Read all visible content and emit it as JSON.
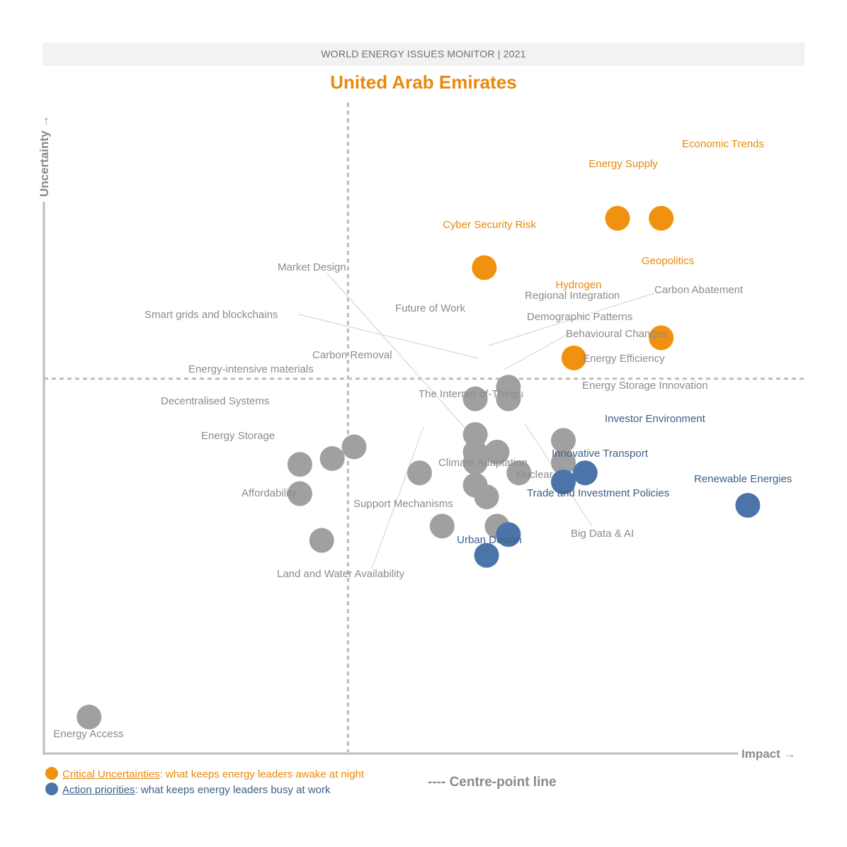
{
  "header": {
    "title": "WORLD ENERGY ISSUES MONITOR | 2021"
  },
  "country": "United Arab Emirates",
  "colors": {
    "critical": "#f0910f",
    "action": "#4b74a8",
    "other": "#a0a0a0",
    "critical_text": "#e8890c",
    "action_text": "#3d5f88",
    "other_text": "#8c8c8c",
    "axis": "#bdbdbd",
    "leader": "#cfcfcf"
  },
  "legend": {
    "critical_label": "Critical Uncertainties",
    "critical_text": ": what keeps energy leaders awake at night",
    "action_label": "Action priorities",
    "action_text": ": what keeps energy leaders busy at work",
    "centre_line": "---- Centre-point line"
  },
  "chart_data": {
    "type": "scatter",
    "title": "United Arab Emirates",
    "xlabel": "Impact",
    "ylabel": "Uncertainty",
    "xlim": [
      0,
      10
    ],
    "ylim": [
      0,
      10
    ],
    "grid": false,
    "centre": {
      "x": 4.04,
      "y": 5.75
    },
    "points": [
      {
        "name": "Economic Trends",
        "x": 8.2,
        "y": 8.22,
        "cat": "critical"
      },
      {
        "name": "Energy Supply",
        "x": 7.62,
        "y": 8.22,
        "cat": "critical"
      },
      {
        "name": "Cyber Security Risk",
        "x": 5.85,
        "y": 7.46,
        "cat": "critical"
      },
      {
        "name": "Geopolitics",
        "x": 8.2,
        "y": 6.38,
        "cat": "critical"
      },
      {
        "name": "Hydrogen",
        "x": 7.04,
        "y": 6.07,
        "cat": "critical"
      },
      {
        "name": "Regional Integration",
        "x": 6.17,
        "y": 5.62,
        "cat": "other"
      },
      {
        "name": "Demographic Patterns",
        "x": 6.17,
        "y": 5.44,
        "cat": "other"
      },
      {
        "name": "Future of Work",
        "x": 5.73,
        "y": 5.44,
        "cat": "other"
      },
      {
        "name": "Carbon Abatement",
        "x": 5.73,
        "y": 4.89,
        "cat": "other"
      },
      {
        "name": "Smart grids and blockchains",
        "x": 5.73,
        "y": 4.62,
        "cat": "other"
      },
      {
        "name": "Behavioural Changes",
        "x": 6.02,
        "y": 4.62,
        "cat": "other"
      },
      {
        "name": "Market Design",
        "x": 5.73,
        "y": 4.46,
        "cat": "other"
      },
      {
        "name": "Energy Efficiency",
        "x": 6.9,
        "y": 4.8,
        "cat": "other"
      },
      {
        "name": "Energy Storage Innovation",
        "x": 6.9,
        "y": 4.46,
        "cat": "other"
      },
      {
        "name": "Carbon Removal",
        "x": 4.12,
        "y": 4.7,
        "cat": "other"
      },
      {
        "name": "Energy-intensive materials",
        "x": 3.83,
        "y": 4.52,
        "cat": "other"
      },
      {
        "name": "Decentralised Systems",
        "x": 3.4,
        "y": 4.43,
        "cat": "other"
      },
      {
        "name": "Energy Storage",
        "x": 3.4,
        "y": 3.98,
        "cat": "other"
      },
      {
        "name": "Investor Environment",
        "x": 7.19,
        "y": 4.3,
        "cat": "action"
      },
      {
        "name": "Innovative Transport",
        "x": 6.9,
        "y": 4.16,
        "cat": "action"
      },
      {
        "name": "Land and Water Availability",
        "x": 4.99,
        "y": 4.3,
        "cat": "other"
      },
      {
        "name": "The Internet-of-Things",
        "x": 5.73,
        "y": 4.11,
        "cat": "other"
      },
      {
        "name": "Big Data & AI",
        "x": 6.31,
        "y": 4.3,
        "cat": "other"
      },
      {
        "name": "Climate Adaptation",
        "x": 5.88,
        "y": 3.93,
        "cat": "other"
      },
      {
        "name": "Renewable Energies",
        "x": 9.35,
        "y": 3.8,
        "cat": "action"
      },
      {
        "name": "Support Mechanisms",
        "x": 5.29,
        "y": 3.48,
        "cat": "other"
      },
      {
        "name": "Nuclear",
        "x": 6.02,
        "y": 3.48,
        "cat": "other"
      },
      {
        "name": "Trade and Investment Policies",
        "x": 6.17,
        "y": 3.35,
        "cat": "action"
      },
      {
        "name": "Affordability",
        "x": 3.69,
        "y": 3.26,
        "cat": "other"
      },
      {
        "name": "Urban Design",
        "x": 5.88,
        "y": 3.03,
        "cat": "action"
      },
      {
        "name": "Energy Access",
        "x": 0.6,
        "y": 0.54,
        "cat": "other"
      }
    ]
  }
}
